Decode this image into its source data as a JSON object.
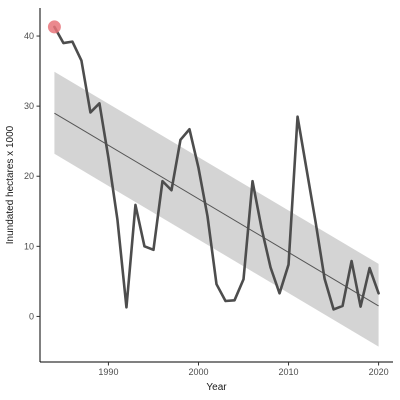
{
  "chart_data": {
    "type": "line",
    "title": "",
    "xlabel": "Year",
    "ylabel": "Inundated hectares x 1000",
    "xlim": [
      1982.4,
      2021.6
    ],
    "ylim": [
      -6.5,
      44
    ],
    "xticks": [
      1990,
      2000,
      2010,
      2020
    ],
    "yticks": [
      0,
      10,
      20,
      30,
      40
    ],
    "xtick_labels": [
      "1990",
      "2000",
      "2010",
      "2020"
    ],
    "ytick_labels": [
      "0",
      "10",
      "20",
      "30",
      "40"
    ],
    "grid": false,
    "legend": "none",
    "series": [
      {
        "x": [
          1984,
          1985,
          1986,
          1987,
          1988,
          1989,
          1990,
          1991,
          1992,
          1993,
          1994,
          1995,
          1996,
          1997,
          1998,
          1999,
          2000,
          2001,
          2002,
          2003,
          2004,
          2005,
          2006,
          2007,
          2008,
          2009,
          2010,
          2011,
          2012,
          2013,
          2014,
          2015,
          2016,
          2017,
          2018,
          2019,
          2020
        ],
        "y": [
          41.3,
          39.0,
          39.2,
          36.5,
          29.1,
          30.4,
          22.6,
          13.8,
          1.3,
          15.9,
          10.0,
          9.5,
          19.3,
          18.0,
          25.2,
          26.7,
          21.2,
          14.3,
          4.6,
          2.2,
          2.3,
          5.3,
          19.3,
          12.6,
          7.0,
          3.3,
          7.4,
          28.5,
          21.0,
          13.5,
          5.4,
          1.0,
          1.5,
          7.9,
          1.4,
          6.9,
          3.3
        ]
      }
    ],
    "trend": {
      "x": [
        1984,
        2020
      ],
      "y": [
        29.0,
        1.5
      ],
      "ci_lower": [
        23.2,
        -4.3
      ],
      "ci_upper": [
        34.9,
        7.5
      ]
    },
    "highlight_point": {
      "x": 1984,
      "y": 41.3
    },
    "colors": {
      "line": "#4d4d4d",
      "trend": "#555555",
      "ribbon": "#cccccc",
      "highlight": "#e8747a",
      "axis": "#000000"
    }
  }
}
